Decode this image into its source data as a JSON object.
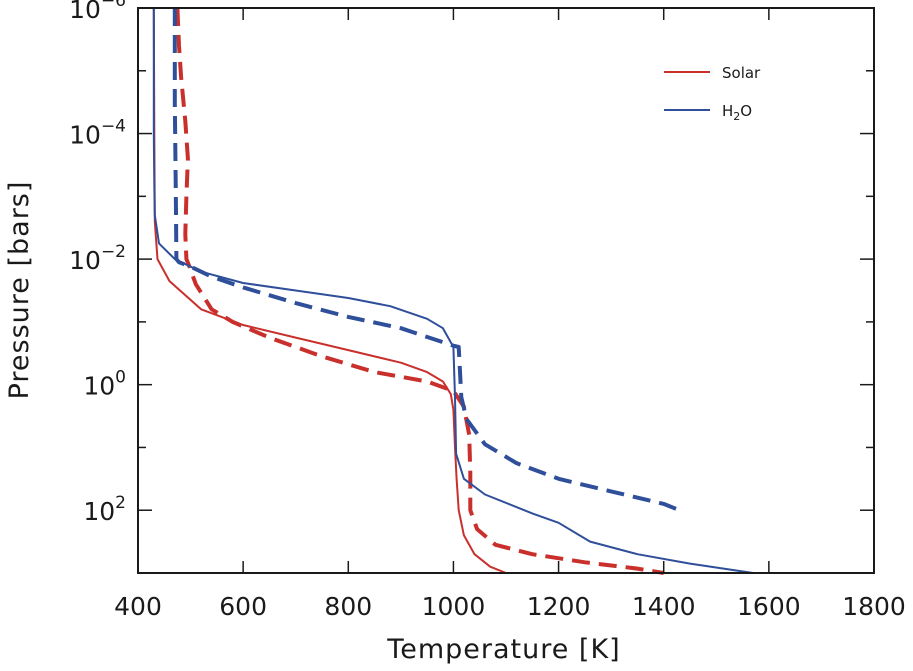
{
  "chart_data": {
    "type": "line",
    "title": "",
    "xlabel": "Temperature [K]",
    "ylabel": "Pressure [bars]",
    "xlim": [
      400,
      1800
    ],
    "ylim_log10": [
      -6,
      3
    ],
    "y_inverted": true,
    "x_ticks": [
      "400",
      "600",
      "800",
      "1000",
      "1200",
      "1400",
      "1600",
      "1800"
    ],
    "y_ticks": [
      {
        "base": "10",
        "exp": "−6",
        "log10": -6
      },
      {
        "base": "10",
        "exp": "−4",
        "log10": -4
      },
      {
        "base": "10",
        "exp": "−2",
        "log10": -2
      },
      {
        "base": "10",
        "exp": "0",
        "log10": 0
      },
      {
        "base": "10",
        "exp": "2",
        "log10": 2
      }
    ],
    "legend": [
      {
        "label": "Solar",
        "color": "#c9302c"
      },
      {
        "label_main": "H",
        "label_sub": "2",
        "label_tail": "O",
        "color": "#2f4f9a"
      }
    ],
    "series": [
      {
        "name": "Solar (solid)",
        "color": "#c9302c",
        "style": "solid",
        "points": [
          [
            430,
            -6.0
          ],
          [
            431,
            -4.0
          ],
          [
            432,
            -2.6
          ],
          [
            437,
            -2.0
          ],
          [
            460,
            -1.65
          ],
          [
            520,
            -1.2
          ],
          [
            600,
            -0.95
          ],
          [
            700,
            -0.75
          ],
          [
            800,
            -0.55
          ],
          [
            900,
            -0.35
          ],
          [
            950,
            -0.2
          ],
          [
            980,
            -0.05
          ],
          [
            995,
            0.15
          ],
          [
            1000,
            0.4
          ],
          [
            1003,
            1.0
          ],
          [
            1006,
            1.5
          ],
          [
            1010,
            2.0
          ],
          [
            1020,
            2.4
          ],
          [
            1040,
            2.7
          ],
          [
            1070,
            2.9
          ],
          [
            1100,
            3.0
          ]
        ]
      },
      {
        "name": "Solar (dashed)",
        "color": "#c9302c",
        "style": "dashed",
        "points": [
          [
            475,
            -6.0
          ],
          [
            478,
            -5.4
          ],
          [
            482,
            -4.9
          ],
          [
            490,
            -4.2
          ],
          [
            495,
            -3.6
          ],
          [
            492,
            -3.0
          ],
          [
            490,
            -2.4
          ],
          [
            492,
            -2.0
          ],
          [
            497,
            -1.9
          ],
          [
            510,
            -1.6
          ],
          [
            540,
            -1.2
          ],
          [
            580,
            -1.0
          ],
          [
            650,
            -0.75
          ],
          [
            750,
            -0.45
          ],
          [
            850,
            -0.2
          ],
          [
            950,
            -0.05
          ],
          [
            1000,
            0.1
          ],
          [
            1020,
            0.35
          ],
          [
            1030,
            0.8
          ],
          [
            1032,
            1.4
          ],
          [
            1032,
            2.0
          ],
          [
            1045,
            2.3
          ],
          [
            1080,
            2.55
          ],
          [
            1150,
            2.7
          ],
          [
            1250,
            2.83
          ],
          [
            1350,
            2.93
          ],
          [
            1400,
            3.0
          ]
        ]
      },
      {
        "name": "H2O (solid)",
        "color": "#2f4f9a",
        "style": "solid",
        "points": [
          [
            430,
            -6.0
          ],
          [
            430,
            -4.0
          ],
          [
            431,
            -3.2
          ],
          [
            432,
            -2.7
          ],
          [
            440,
            -2.25
          ],
          [
            470,
            -2.0
          ],
          [
            520,
            -1.8
          ],
          [
            600,
            -1.62
          ],
          [
            700,
            -1.5
          ],
          [
            800,
            -1.38
          ],
          [
            880,
            -1.25
          ],
          [
            950,
            -1.05
          ],
          [
            980,
            -0.9
          ],
          [
            1000,
            -0.6
          ],
          [
            1003,
            0.2
          ],
          [
            1005,
            1.1
          ],
          [
            1020,
            1.5
          ],
          [
            1060,
            1.75
          ],
          [
            1150,
            2.05
          ],
          [
            1200,
            2.2
          ],
          [
            1260,
            2.5
          ],
          [
            1350,
            2.7
          ],
          [
            1450,
            2.85
          ],
          [
            1570,
            3.0
          ]
        ]
      },
      {
        "name": "H2O (dashed)",
        "color": "#2f4f9a",
        "style": "dashed",
        "points": [
          [
            470,
            -6.0
          ],
          [
            470,
            -4.5
          ],
          [
            471,
            -3.8
          ],
          [
            472,
            -2.9
          ],
          [
            473,
            -2.0
          ],
          [
            478,
            -1.95
          ],
          [
            500,
            -1.88
          ],
          [
            540,
            -1.72
          ],
          [
            600,
            -1.55
          ],
          [
            700,
            -1.3
          ],
          [
            800,
            -1.08
          ],
          [
            900,
            -0.9
          ],
          [
            1000,
            -0.62
          ],
          [
            1010,
            -0.6
          ],
          [
            1012,
            -0.3
          ],
          [
            1015,
            0.2
          ],
          [
            1025,
            0.55
          ],
          [
            1060,
            0.95
          ],
          [
            1120,
            1.25
          ],
          [
            1200,
            1.5
          ],
          [
            1300,
            1.7
          ],
          [
            1400,
            1.9
          ],
          [
            1430,
            2.0
          ]
        ]
      }
    ]
  }
}
